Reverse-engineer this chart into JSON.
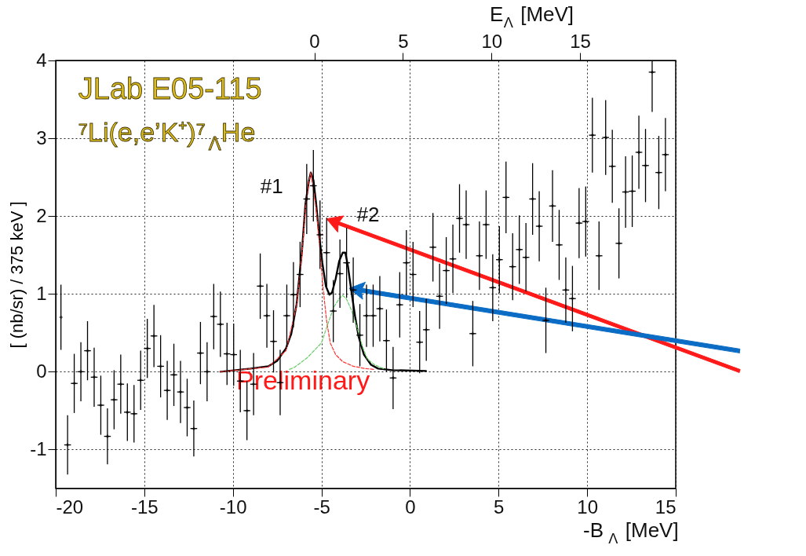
{
  "chart_data": {
    "type": "scatter",
    "xlabel": "-B$_{Λ}$ [MeV]",
    "ylabel": "[ (nb/sr) / 375 keV ]",
    "x2label": "E$_{Λ}$ [MeV]",
    "xlim": [
      -20,
      15
    ],
    "xticks": [
      -20,
      -15,
      -10,
      -5,
      0,
      5,
      10,
      15
    ],
    "ylim": [
      -1.5,
      4
    ],
    "yticks": [
      -1,
      0,
      1,
      2,
      3,
      4
    ],
    "x2lim": [
      -14.6,
      20.4
    ],
    "x2ticks": [
      0,
      5,
      10,
      15
    ],
    "grid": true,
    "annotations": [
      "JLab E05-115",
      "⁷Li(e,e’K⁺)⁷$_{Λ}$He",
      "Preliminary",
      "#1",
      "#2"
    ],
    "series": [
      {
        "color": "#000000",
        "marker": "cross",
        "x": [
          -19.705,
          -19.33,
          -18.955,
          -18.58,
          -18.205,
          -17.83,
          -17.455,
          -17.08,
          -16.705,
          -16.33,
          -15.955,
          -15.58,
          -15.205,
          -14.83,
          -14.455,
          -14.08,
          -13.705,
          -13.33,
          -12.955,
          -12.58,
          -12.205,
          -11.83,
          -11.455,
          -11.08,
          -10.705,
          -10.33,
          -9.955,
          -9.58,
          -9.205,
          -8.83,
          -8.455,
          -8.08,
          -7.705,
          -7.33,
          -6.955,
          -6.58,
          -6.205,
          -5.83,
          -5.455,
          -5.08,
          -4.705,
          -4.33,
          -3.955,
          -3.58,
          -3.205,
          -2.83,
          -2.455,
          -2.08,
          -1.705,
          -1.33,
          -0.955,
          -0.58,
          -0.205,
          0.17,
          0.545,
          0.92,
          1.295,
          1.67,
          2.045,
          2.42,
          2.795,
          3.17,
          3.545,
          3.92,
          4.295,
          4.67,
          5.045,
          5.42,
          5.795,
          6.17,
          6.545,
          6.92,
          7.295,
          7.67,
          8.045,
          8.42,
          8.795,
          9.17,
          9.545,
          9.92,
          10.295,
          10.67,
          11.045,
          11.42,
          11.795,
          12.17,
          12.545,
          12.92,
          13.295,
          13.67,
          14.045,
          14.42
        ],
        "values": [
          0.7,
          -0.94,
          -0.15,
          0.0,
          0.27,
          -0.07,
          -0.43,
          -0.83,
          -0.36,
          -0.16,
          -0.52,
          -0.54,
          -0.11,
          0.3,
          0.46,
          0.07,
          -0.24,
          -0.04,
          -0.26,
          -0.46,
          -0.73,
          0.24,
          0.0,
          0.71,
          0.61,
          0.23,
          0.22,
          -0.12,
          -0.5,
          -0.16,
          1.1,
          0.72,
          0.39,
          -0.14,
          0.72,
          0.99,
          1.25,
          2.22,
          2.39,
          1.76,
          1.53,
          0.78,
          1.26,
          1.4,
          1.05,
          0.47,
          0.72,
          0.72,
          0.81,
          0.4,
          -0.08,
          0.86,
          1.4,
          1.25,
          0.38,
          0.54,
          1.6,
          0.97,
          1.3,
          1.45,
          1.97,
          1.89,
          0.49,
          1.49,
          1.89,
          1.08,
          1.44,
          2.24,
          1.35,
          1.57,
          1.47,
          2.22,
          1.87,
          0.66,
          2.13,
          1.63,
          1.05,
          0.94,
          1.91,
          1.93,
          3.04,
          1.49,
          3.01,
          2.64,
          1.65,
          2.31,
          2.32,
          2.82,
          2.65,
          3.85,
          2.56,
          2.79
        ],
        "errors": [
          0.42,
          0.38,
          0.38,
          0.38,
          0.38,
          0.38,
          0.38,
          0.36,
          0.38,
          0.38,
          0.37,
          0.37,
          0.38,
          0.38,
          0.4,
          0.4,
          0.38,
          0.4,
          0.4,
          0.37,
          0.36,
          0.4,
          0.38,
          0.42,
          0.42,
          0.4,
          0.4,
          0.4,
          0.38,
          0.4,
          0.42,
          0.41,
          0.4,
          0.42,
          0.4,
          0.42,
          0.42,
          0.45,
          0.46,
          0.44,
          0.45,
          0.4,
          0.44,
          0.45,
          0.42,
          0.4,
          0.4,
          0.4,
          0.42,
          0.4,
          0.4,
          0.42,
          0.42,
          0.42,
          0.4,
          0.4,
          0.44,
          0.42,
          0.43,
          0.44,
          0.44,
          0.44,
          0.42,
          0.44,
          0.44,
          0.43,
          0.43,
          0.46,
          0.43,
          0.44,
          0.44,
          0.46,
          0.45,
          0.42,
          0.46,
          0.45,
          0.42,
          0.42,
          0.45,
          0.45,
          0.48,
          0.44,
          0.48,
          0.47,
          0.45,
          0.46,
          0.46,
          0.47,
          0.47,
          [
            3.34,
            4.0
          ],
          0.47,
          0.47
        ],
        "xerrors": [
          null,
          0.19,
          0.19,
          0.19,
          0.19,
          0.19,
          0.19,
          0.19,
          0.19,
          0.19,
          0.19,
          0.19,
          0.19,
          0.19,
          0.19,
          0.19,
          0.19,
          0.19,
          0.19,
          0.19,
          0.19,
          0.19,
          0.19,
          0.19,
          0.19,
          0.19,
          0.19,
          0.19,
          0.19,
          0.19,
          0.19,
          0.19,
          0.19,
          0.19,
          0.19,
          0.19,
          0.19,
          0.19,
          0.19,
          0.19,
          0.19,
          0.19,
          0.19,
          0.19,
          0.19,
          0.19,
          0.19,
          0.19,
          0.19,
          0.19,
          0.19,
          0.19,
          0.19,
          0.19,
          0.19,
          0.19,
          0.19,
          0.19,
          0.19,
          0.19,
          0.19,
          0.19,
          0.19,
          0.19,
          0.19,
          0.19,
          0.19,
          0.19,
          0.19,
          0.19,
          0.19,
          0.19,
          0.19,
          0.19,
          0.19,
          0.19,
          0.19,
          0.19,
          0.19,
          0.19,
          0.19,
          0.19,
          0.19,
          0.19,
          0.19,
          0.19,
          0.19,
          0.19,
          0.19,
          0.19,
          0.19,
          0.19
        ]
      },
      {
        "type": "line",
        "color": "#000000",
        "line_style": "solid",
        "x": [
          -10.7,
          -9.0,
          -8.0,
          -7.5,
          -7.0,
          -6.7,
          -6.4,
          -6.1,
          -5.9,
          -5.7,
          -5.6,
          -5.45,
          -5.3,
          -5.1,
          -4.95,
          -4.75,
          -4.55,
          -4.4,
          -4.2,
          -4.0,
          -3.8,
          -3.65,
          -3.5,
          -3.3,
          -3.1,
          -2.9,
          -2.6,
          -2.2,
          -1.8,
          -1.0,
          0.9
        ],
        "values": [
          0.0,
          0.04,
          0.07,
          0.14,
          0.3,
          0.49,
          0.87,
          1.55,
          2.16,
          2.46,
          2.56,
          2.46,
          2.16,
          1.7,
          1.4,
          1.1,
          0.99,
          1.02,
          1.19,
          1.42,
          1.53,
          1.53,
          1.35,
          1.02,
          0.71,
          0.45,
          0.22,
          0.09,
          0.04,
          0.02,
          0.01
        ]
      },
      {
        "type": "line",
        "color": "#ff3333",
        "line_style": "dashed",
        "x": [
          -10.7,
          -8.0,
          -7.0,
          -6.4,
          -6.1,
          -5.9,
          -5.7,
          -5.6,
          -5.3,
          -5.1,
          -4.9,
          -4.7,
          -4.5,
          -4.2,
          -3.8,
          -3.2,
          -2.5,
          -2.0
        ],
        "values": [
          0.0,
          0.06,
          0.27,
          0.85,
          1.5,
          2.1,
          2.45,
          2.56,
          2.1,
          1.6,
          1.06,
          0.64,
          0.37,
          0.22,
          0.13,
          0.07,
          0.04,
          0.03
        ]
      },
      {
        "type": "line",
        "color": "#66cc66",
        "line_style": "dashed",
        "x": [
          -6.8,
          -6.5,
          -5.8,
          -5.0,
          -4.6,
          -4.3,
          -4.0,
          -3.8,
          -3.6,
          -3.3,
          -3.0,
          -2.7,
          -2.4,
          -2.0,
          -1.5
        ],
        "values": [
          0.03,
          0.06,
          0.18,
          0.37,
          0.64,
          0.83,
          0.94,
          0.98,
          0.94,
          0.79,
          0.58,
          0.33,
          0.16,
          0.09,
          0.04
        ]
      }
    ]
  }
}
